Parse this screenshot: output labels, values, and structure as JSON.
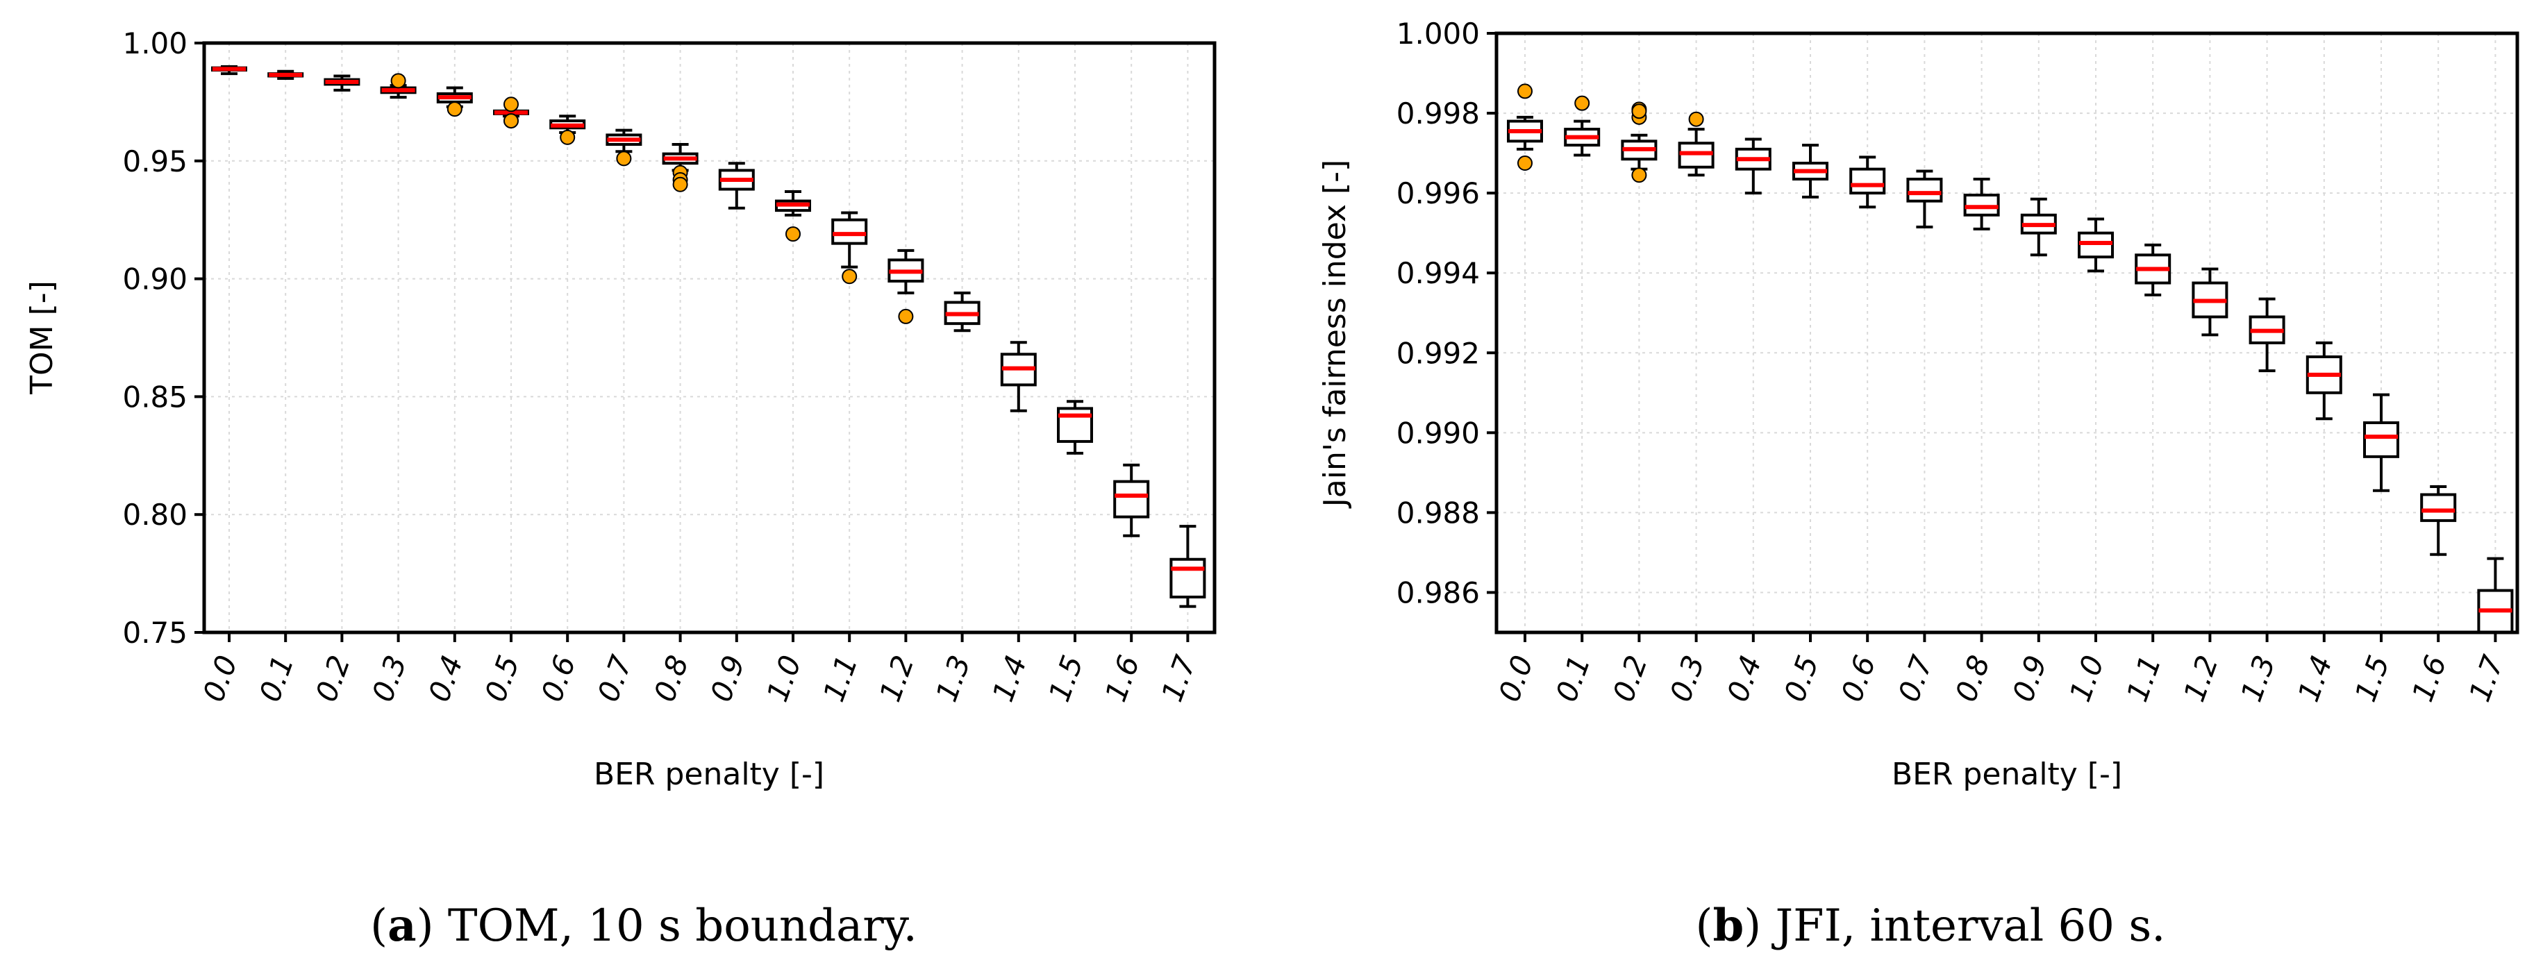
{
  "chart_data": [
    {
      "type": "boxplot",
      "caption": {
        "letter": "a",
        "text": "TOM, 10 s boundary."
      },
      "xlabel": "BER penalty [-]",
      "ylabel": "TOM [-]",
      "ylim": [
        0.75,
        1.0
      ],
      "y_ticks": [
        "0.75",
        "0.80",
        "0.85",
        "0.90",
        "0.95",
        "1.00"
      ],
      "y_tick_values": [
        0.75,
        0.8,
        0.85,
        0.9,
        0.95,
        1.0
      ],
      "categories": [
        "0.0",
        "0.1",
        "0.2",
        "0.3",
        "0.4",
        "0.5",
        "0.6",
        "0.7",
        "0.8",
        "0.9",
        "1.0",
        "1.1",
        "1.2",
        "1.3",
        "1.4",
        "1.5",
        "1.6",
        "1.7"
      ],
      "grid": true,
      "boxes": [
        {
          "wlo": 0.987,
          "q1": 0.9885,
          "med": 0.989,
          "q3": 0.9895,
          "whi": 0.99,
          "fliers": []
        },
        {
          "wlo": 0.985,
          "q1": 0.986,
          "med": 0.9865,
          "q3": 0.987,
          "whi": 0.988,
          "fliers": []
        },
        {
          "wlo": 0.98,
          "q1": 0.9825,
          "med": 0.9835,
          "q3": 0.9845,
          "whi": 0.986,
          "fliers": []
        },
        {
          "wlo": 0.977,
          "q1": 0.979,
          "med": 0.98,
          "q3": 0.981,
          "whi": 0.982,
          "fliers": [
            0.984
          ]
        },
        {
          "wlo": 0.973,
          "q1": 0.975,
          "med": 0.977,
          "q3": 0.9785,
          "whi": 0.981,
          "fliers": [
            0.972
          ]
        },
        {
          "wlo": 0.969,
          "q1": 0.97,
          "med": 0.9705,
          "q3": 0.9712,
          "whi": 0.971,
          "fliers": [
            0.974,
            0.967
          ]
        },
        {
          "wlo": 0.962,
          "q1": 0.964,
          "med": 0.965,
          "q3": 0.967,
          "whi": 0.969,
          "fliers": [
            0.96
          ]
        },
        {
          "wlo": 0.954,
          "q1": 0.957,
          "med": 0.959,
          "q3": 0.961,
          "whi": 0.963,
          "fliers": [
            0.951
          ]
        },
        {
          "wlo": 0.946,
          "q1": 0.949,
          "med": 0.951,
          "q3": 0.953,
          "whi": 0.957,
          "fliers": [
            0.945,
            0.942,
            0.94
          ]
        },
        {
          "wlo": 0.93,
          "q1": 0.938,
          "med": 0.942,
          "q3": 0.946,
          "whi": 0.949,
          "fliers": []
        },
        {
          "wlo": 0.927,
          "q1": 0.929,
          "med": 0.9315,
          "q3": 0.933,
          "whi": 0.937,
          "fliers": [
            0.919
          ]
        },
        {
          "wlo": 0.905,
          "q1": 0.915,
          "med": 0.919,
          "q3": 0.925,
          "whi": 0.928,
          "fliers": [
            0.901
          ]
        },
        {
          "wlo": 0.894,
          "q1": 0.899,
          "med": 0.903,
          "q3": 0.908,
          "whi": 0.912,
          "fliers": [
            0.884
          ]
        },
        {
          "wlo": 0.878,
          "q1": 0.881,
          "med": 0.885,
          "q3": 0.89,
          "whi": 0.894,
          "fliers": []
        },
        {
          "wlo": 0.844,
          "q1": 0.855,
          "med": 0.862,
          "q3": 0.868,
          "whi": 0.873,
          "fliers": []
        },
        {
          "wlo": 0.826,
          "q1": 0.831,
          "med": 0.842,
          "q3": 0.845,
          "whi": 0.848,
          "fliers": []
        },
        {
          "wlo": 0.791,
          "q1": 0.799,
          "med": 0.808,
          "q3": 0.814,
          "whi": 0.821,
          "fliers": []
        },
        {
          "wlo": 0.761,
          "q1": 0.765,
          "med": 0.777,
          "q3": 0.781,
          "whi": 0.795,
          "fliers": []
        }
      ]
    },
    {
      "type": "boxplot",
      "caption": {
        "letter": "b",
        "text": "JFI, interval 60 s."
      },
      "xlabel": "BER penalty [-]",
      "ylabel": "Jain's fairness index [-]",
      "ylim": [
        0.985,
        1.0
      ],
      "y_ticks": [
        "0.986",
        "0.988",
        "0.990",
        "0.992",
        "0.994",
        "0.996",
        "0.998",
        "1.000"
      ],
      "y_tick_values": [
        0.986,
        0.988,
        0.99,
        0.992,
        0.994,
        0.996,
        0.998,
        1.0
      ],
      "categories": [
        "0.0",
        "0.1",
        "0.2",
        "0.3",
        "0.4",
        "0.5",
        "0.6",
        "0.7",
        "0.8",
        "0.9",
        "1.0",
        "1.1",
        "1.2",
        "1.3",
        "1.4",
        "1.5",
        "1.6",
        "1.7"
      ],
      "grid": true,
      "boxes": [
        {
          "wlo": 0.9971,
          "q1": 0.9973,
          "med": 0.99755,
          "q3": 0.9978,
          "whi": 0.9979,
          "fliers": [
            0.99855,
            0.99675
          ]
        },
        {
          "wlo": 0.99695,
          "q1": 0.9972,
          "med": 0.9974,
          "q3": 0.9976,
          "whi": 0.9978,
          "fliers": [
            0.99825
          ]
        },
        {
          "wlo": 0.9966,
          "q1": 0.99685,
          "med": 0.9971,
          "q3": 0.9973,
          "whi": 0.99745,
          "fliers": [
            0.9981,
            0.9979,
            0.99805,
            0.99645
          ]
        },
        {
          "wlo": 0.99645,
          "q1": 0.99665,
          "med": 0.997,
          "q3": 0.99725,
          "whi": 0.9976,
          "fliers": [
            0.99785
          ]
        },
        {
          "wlo": 0.996,
          "q1": 0.9966,
          "med": 0.99685,
          "q3": 0.9971,
          "whi": 0.99735,
          "fliers": []
        },
        {
          "wlo": 0.9959,
          "q1": 0.99635,
          "med": 0.99655,
          "q3": 0.99675,
          "whi": 0.9972,
          "fliers": []
        },
        {
          "wlo": 0.99565,
          "q1": 0.996,
          "med": 0.9962,
          "q3": 0.9966,
          "whi": 0.9969,
          "fliers": []
        },
        {
          "wlo": 0.99515,
          "q1": 0.9958,
          "med": 0.996,
          "q3": 0.99635,
          "whi": 0.99655,
          "fliers": []
        },
        {
          "wlo": 0.9951,
          "q1": 0.99545,
          "med": 0.99565,
          "q3": 0.99595,
          "whi": 0.99635,
          "fliers": []
        },
        {
          "wlo": 0.99445,
          "q1": 0.995,
          "med": 0.9952,
          "q3": 0.99545,
          "whi": 0.99585,
          "fliers": []
        },
        {
          "wlo": 0.99405,
          "q1": 0.9944,
          "med": 0.99475,
          "q3": 0.995,
          "whi": 0.99535,
          "fliers": []
        },
        {
          "wlo": 0.99345,
          "q1": 0.99375,
          "med": 0.9941,
          "q3": 0.99445,
          "whi": 0.9947,
          "fliers": []
        },
        {
          "wlo": 0.99245,
          "q1": 0.9929,
          "med": 0.9933,
          "q3": 0.99375,
          "whi": 0.9941,
          "fliers": []
        },
        {
          "wlo": 0.99155,
          "q1": 0.99225,
          "med": 0.99255,
          "q3": 0.9929,
          "whi": 0.99335,
          "fliers": []
        },
        {
          "wlo": 0.99035,
          "q1": 0.991,
          "med": 0.99145,
          "q3": 0.9919,
          "whi": 0.99225,
          "fliers": []
        },
        {
          "wlo": 0.98855,
          "q1": 0.9894,
          "med": 0.9899,
          "q3": 0.99025,
          "whi": 0.99095,
          "fliers": []
        },
        {
          "wlo": 0.98695,
          "q1": 0.9878,
          "med": 0.98805,
          "q3": 0.98845,
          "whi": 0.98865,
          "fliers": []
        },
        {
          "wlo": 0.985,
          "q1": 0.985,
          "med": 0.98555,
          "q3": 0.98605,
          "whi": 0.98685,
          "fliers": []
        }
      ]
    }
  ],
  "colors": {
    "median": "#ff0000",
    "flier_fill": "#ffa500",
    "grid": "#d9d9d9"
  }
}
